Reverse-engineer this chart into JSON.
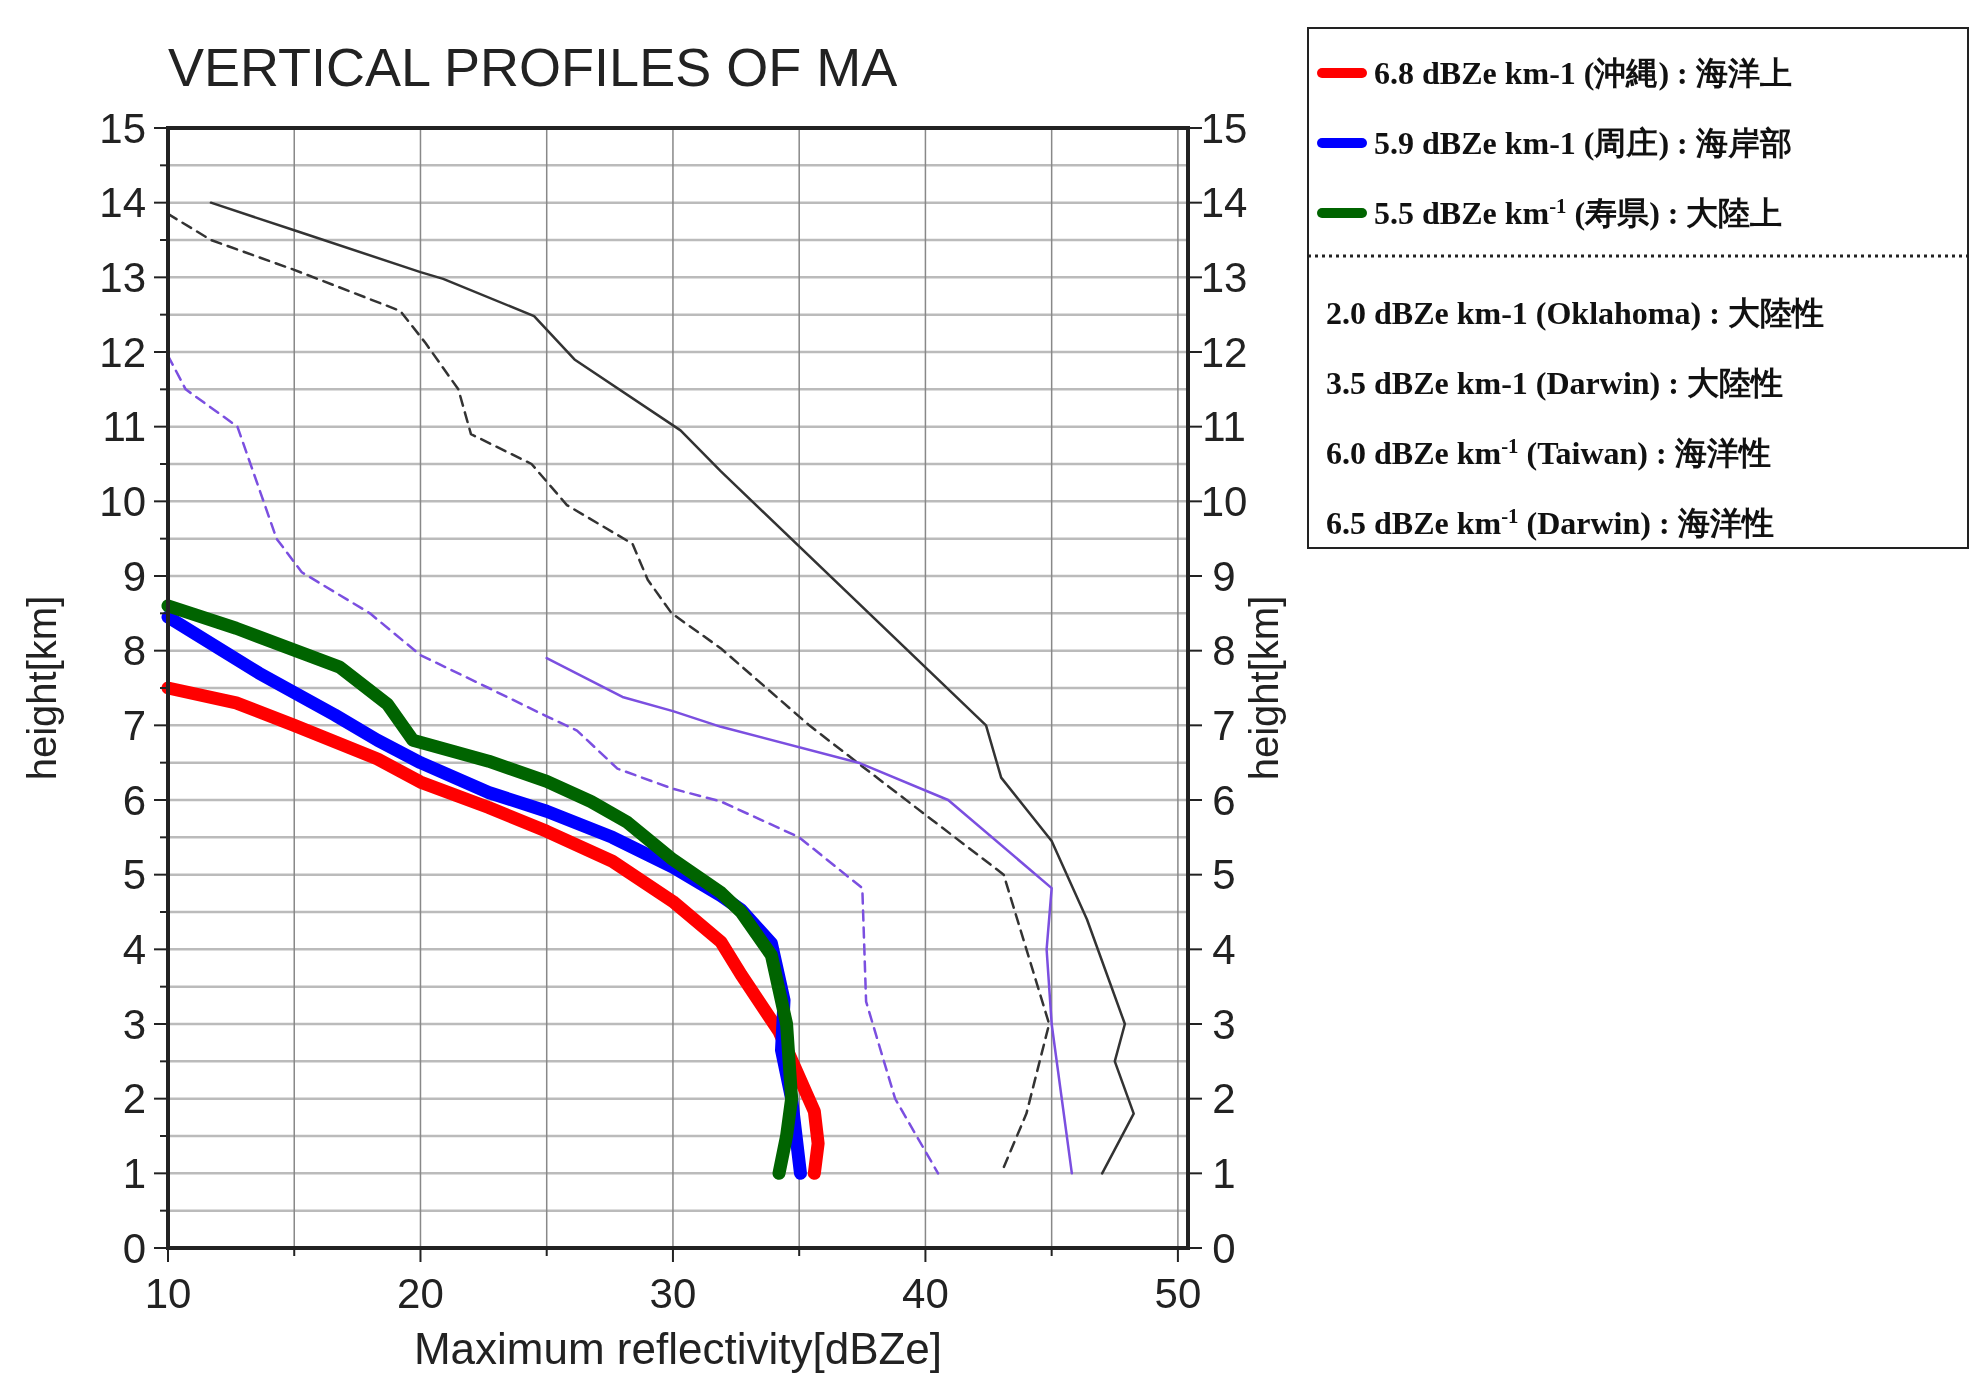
{
  "chart_data": {
    "type": "line",
    "title": "VERTICAL PROFILES OF MA",
    "xlabel": "Maximum reflectivity[dBZe]",
    "ylabel": "height[km]",
    "y2label": "height[km]",
    "xlim": [
      10,
      50.4
    ],
    "xticks": [
      10,
      {
        "value": 15,
        "label": null
      },
      20,
      {
        "value": 25,
        "label": null
      },
      30,
      {
        "value": 35,
        "label": null
      },
      40,
      {
        "value": 45,
        "label": null
      },
      50
    ],
    "ylim": [
      0,
      15
    ],
    "yticks": [
      0,
      {
        "value": 0.5,
        "label": null
      },
      1,
      {
        "value": 1.5,
        "label": null
      },
      2,
      {
        "value": 2.5,
        "label": null
      },
      3,
      {
        "value": 3.5,
        "label": null
      },
      4,
      {
        "value": 4.5,
        "label": null
      },
      5,
      {
        "value": 5.5,
        "label": null
      },
      6,
      {
        "value": 6.5,
        "label": null
      },
      7,
      {
        "value": 7.5,
        "label": null
      },
      8,
      {
        "value": 8.5,
        "label": null
      },
      9,
      {
        "value": 9.5,
        "label": null
      },
      10,
      {
        "value": 10.5,
        "label": null
      },
      11,
      {
        "value": 11.5,
        "label": null
      },
      12,
      {
        "value": 12.5,
        "label": null
      },
      13,
      {
        "value": 13.5,
        "label": null
      },
      14,
      {
        "value": 14.5,
        "label": null
      },
      15
    ],
    "y2lim": [
      0,
      15
    ],
    "y2ticks": [
      0,
      1,
      2,
      3,
      4,
      5,
      6,
      7,
      8,
      9,
      10,
      11,
      12,
      13,
      14,
      15
    ],
    "grid": true,
    "legend": "right",
    "marker": "none",
    "series": [
      {
        "name": "6.8 dBZe km-1 (沖縄) : 海洋上",
        "color": "#ff0000",
        "line_style": "solid",
        "x": [
          10,
          12.7,
          15,
          18.3,
          20,
          22.7,
          25,
          27.6,
          30,
          31.9,
          32.7,
          34.2,
          35.6,
          35.75,
          35.6
        ],
        "values": [
          7.5,
          7.3,
          7.0,
          6.55,
          6.24,
          5.9,
          5.58,
          5.18,
          4.64,
          4.1,
          3.66,
          2.9,
          1.83,
          1.4,
          1.0
        ]
      },
      {
        "name": "5.9 dBZe km-1 (周庄) : 海岸部",
        "color": "#0000ff",
        "line_style": "solid",
        "x": [
          10,
          13.6,
          16.6,
          18.3,
          20,
          22.7,
          25,
          27.6,
          30,
          31.9,
          32.7,
          33.9,
          34.4,
          34.3,
          34.7,
          35.05
        ],
        "values": [
          8.45,
          7.7,
          7.14,
          6.8,
          6.5,
          6.1,
          5.85,
          5.5,
          5.1,
          4.72,
          4.53,
          4.08,
          3.32,
          2.65,
          2.0,
          1.0
        ]
      },
      {
        "name": "5.5 dBZe km$^{-1}$ (寿県) : 大陸上",
        "color": "#006400",
        "line_style": "solid",
        "x": [
          10,
          12.7,
          16.8,
          18.7,
          19.7,
          22.7,
          25,
          26.75,
          28.2,
          30,
          31.9,
          32.7,
          33.9,
          34.5,
          34.7,
          34.5,
          34.2
        ],
        "values": [
          8.6,
          8.3,
          7.78,
          7.28,
          6.8,
          6.52,
          6.25,
          5.98,
          5.7,
          5.2,
          4.76,
          4.5,
          3.92,
          3.0,
          2.0,
          1.5,
          1.0
        ]
      },
      {
        "color": "#333333",
        "line_style": "solid",
        "x": [
          11.7,
          15,
          20,
          20.9,
          24.5,
          26.1,
          30.3,
          31.9,
          42.4,
          43.0,
          45,
          46.4,
          47.9,
          47.5,
          48.25,
          47.0
        ],
        "values": [
          14.0,
          13.63,
          13.07,
          12.98,
          12.48,
          11.9,
          10.95,
          10.4,
          7.0,
          6.3,
          5.45,
          4.4,
          3.0,
          2.5,
          1.8,
          1.0
        ]
      },
      {
        "color": "#333333",
        "line_style": "dashed",
        "x": [
          10,
          11.7,
          15,
          19.2,
          20.2,
          21.5,
          22,
          24.4,
          25.8,
          28.4,
          29,
          29.95,
          31.9,
          35.4,
          37.5,
          40.2,
          43.1,
          44.9,
          44.0,
          43.0
        ],
        "values": [
          13.85,
          13.5,
          13.1,
          12.55,
          12.12,
          11.5,
          10.9,
          10.5,
          9.95,
          9.43,
          8.95,
          8.5,
          8.03,
          7.0,
          6.45,
          5.75,
          5.0,
          3.0,
          1.8,
          1.0
        ]
      },
      {
        "color": "#7b4fe0",
        "line_style": "dashed",
        "x": [
          10,
          10.7,
          12.75,
          14.3,
          15.3,
          18,
          20,
          22.7,
          25,
          26.2,
          27.8,
          30,
          31.9,
          35,
          37.5,
          37.65,
          38.8,
          40.5
        ],
        "values": [
          11.95,
          11.5,
          11.0,
          9.5,
          9.05,
          8.5,
          7.94,
          7.5,
          7.12,
          6.93,
          6.42,
          6.15,
          5.98,
          5.5,
          4.82,
          3.3,
          2.0,
          1.0
        ]
      },
      {
        "color": "#7b4fe0",
        "line_style": "solid",
        "x": [
          25,
          28,
          30,
          31.9,
          37.35,
          40.9,
          45,
          44.8,
          45,
          45.8
        ],
        "values": [
          7.9,
          7.38,
          7.19,
          6.98,
          6.5,
          6.0,
          4.82,
          4.0,
          3.0,
          1.0
        ]
      }
    ],
    "annotations": [
      "2.0 dBZe km-1 (Oklahoma) : 大陸性",
      "3.5 dBZe km-1 (Darwin) : 大陸性",
      "6.0 dBZe km$^{-1}$ (Taiwan) : 海洋性",
      "6.5 dBZe km$^{-1}$ (Darwin) : 海洋性"
    ]
  }
}
